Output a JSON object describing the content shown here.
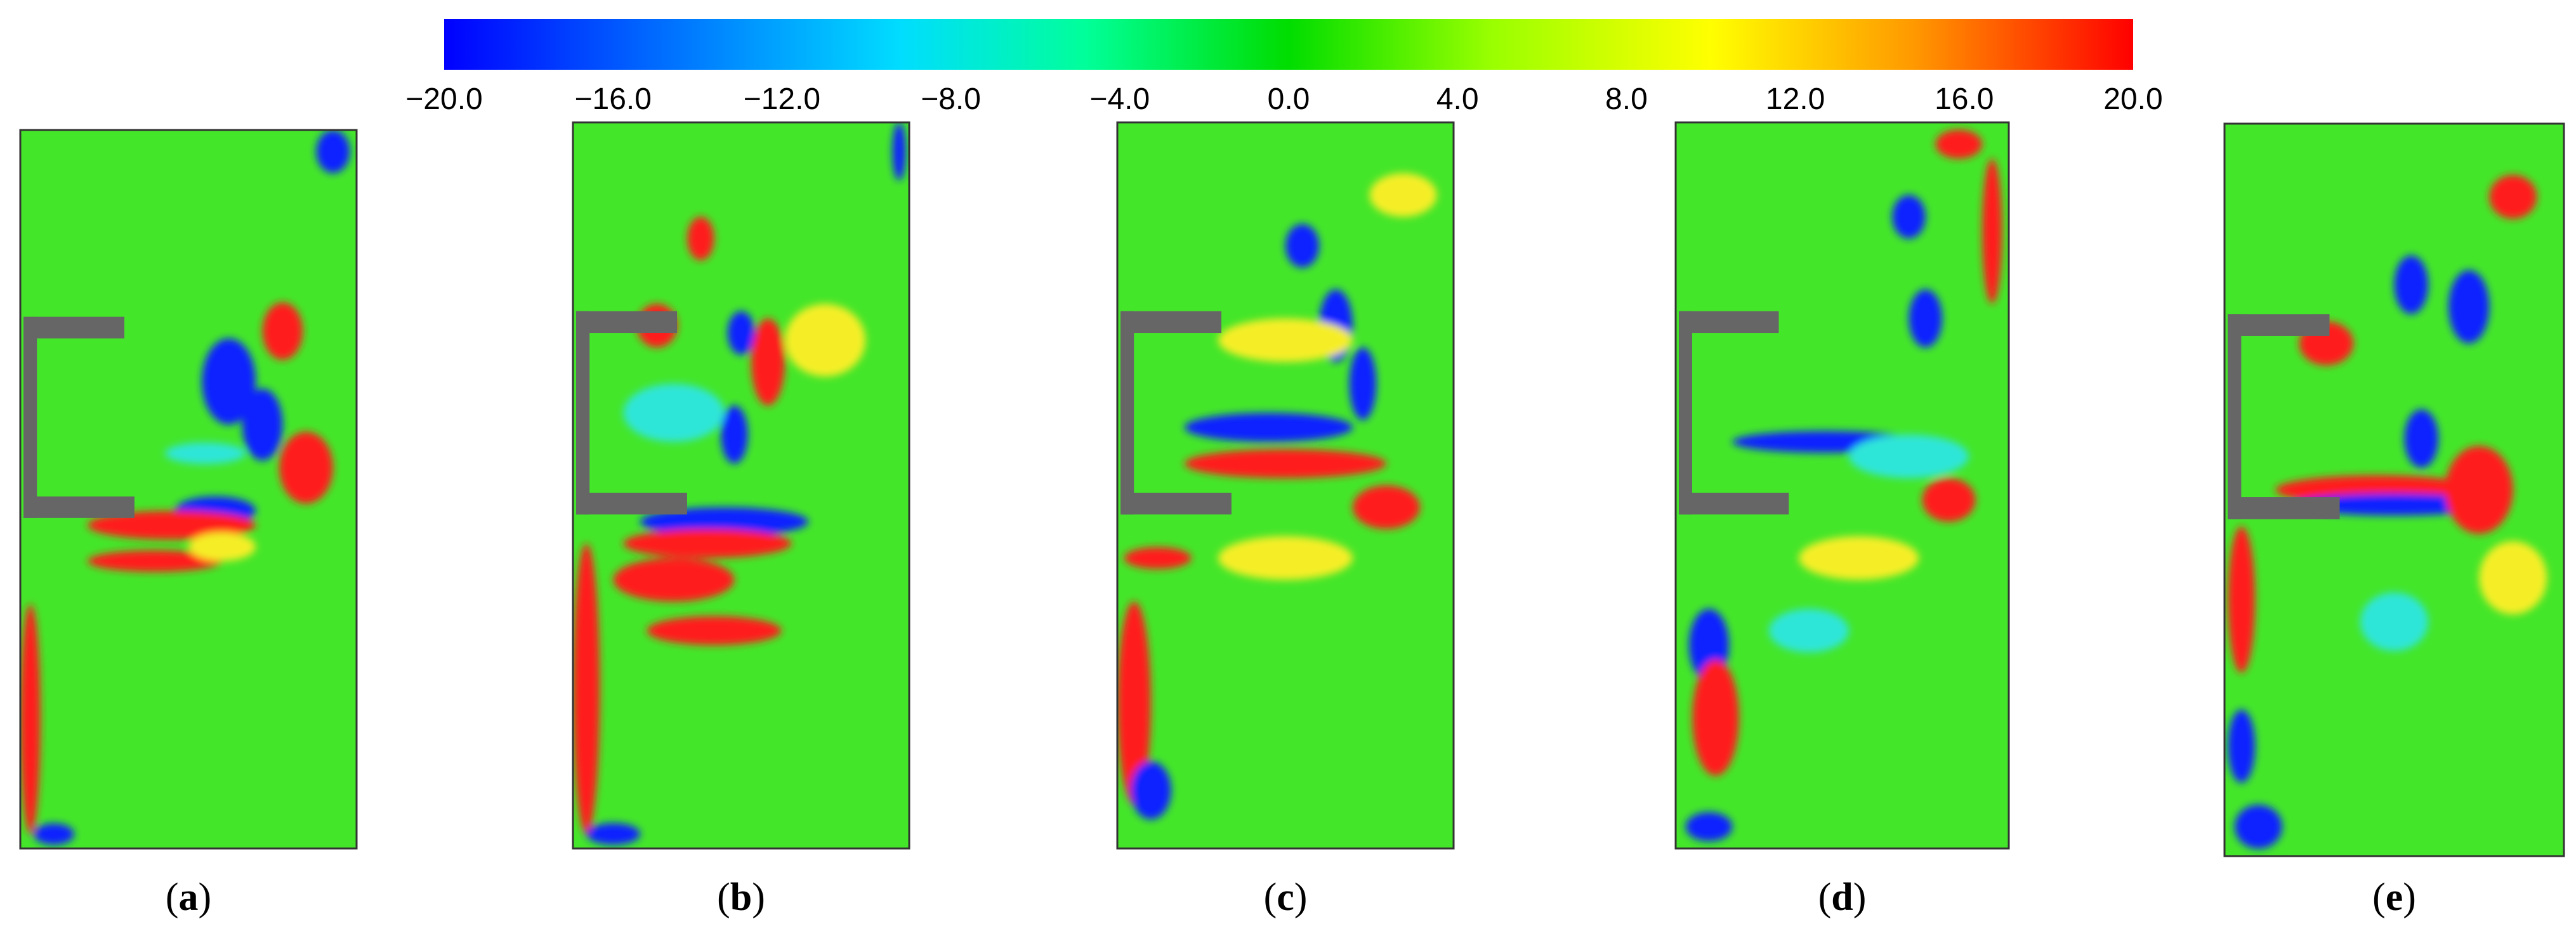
{
  "colorbar": {
    "ticks": [
      "−20.0",
      "−16.0",
      "−12.0",
      "−8.0",
      "−4.0",
      "0.0",
      "4.0",
      "8.0",
      "12.0",
      "16.0",
      "20.0"
    ],
    "colors": [
      "#0000ff",
      "#0066ff",
      "#00ddff",
      "#00ff99",
      "#00dd00",
      "#99ff00",
      "#ffff00",
      "#ff9900",
      "#ff0000"
    ]
  },
  "panels": [
    {
      "label": "a"
    },
    {
      "label": "b"
    },
    {
      "label": "c"
    },
    {
      "label": "d"
    },
    {
      "label": "e"
    }
  ],
  "field_colors": {
    "background": "#44e62a",
    "wall": "#666666",
    "positive": "#ff1a1a",
    "negative": "#1020ff",
    "weak_positive": "#f5ee28",
    "weak_negative": "#2ee6d8"
  }
}
